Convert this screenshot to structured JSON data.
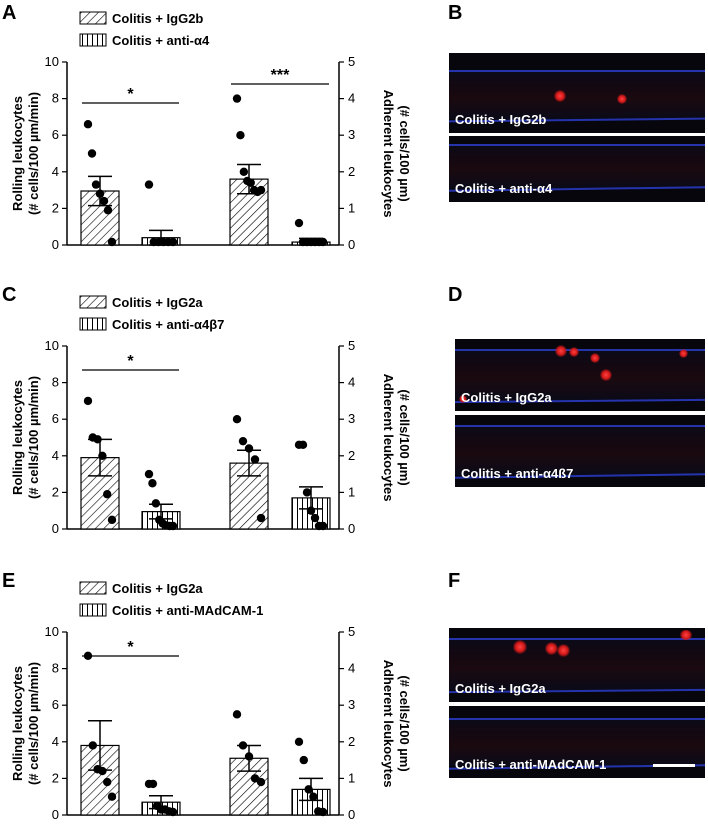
{
  "panels": {
    "A": "A",
    "B": "B",
    "C": "C",
    "D": "D",
    "E": "E",
    "F": "F"
  },
  "chart_data": [
    {
      "type": "bar",
      "panel": "A",
      "legend": [
        {
          "name": "Colitis + IgG2b",
          "pattern": "diagonal"
        },
        {
          "name": "Colitis + anti-α4",
          "pattern": "vertical"
        }
      ],
      "ylabel_left": [
        "Rolling leukocytes",
        "(# cells/100 µm/min)"
      ],
      "ylabel_right": [
        "Adherent leukocytes",
        "(# cells/100 µm)"
      ],
      "ylim_left": [
        0,
        10
      ],
      "yticks_left": [
        "0",
        "2",
        "4",
        "6",
        "8",
        "10"
      ],
      "ylim_right": [
        0,
        5
      ],
      "yticks_right": [
        "0",
        "1",
        "2",
        "3",
        "4",
        "5"
      ],
      "groups": [
        {
          "measure": "rolling",
          "bars": [
            {
              "series": "Colitis + IgG2b",
              "mean": 2.95,
              "sem": 0.8,
              "points": [
                6.6,
                5.0,
                3.3,
                2.8,
                2.4,
                1.9,
                0.05
              ]
            },
            {
              "series": "Colitis + anti-α4",
              "mean": 0.4,
              "sem": 0.4,
              "points": [
                3.3,
                0.05,
                0.05,
                0.05,
                0.05,
                0.05
              ]
            }
          ],
          "significance": "*"
        },
        {
          "measure": "adherent",
          "bars": [
            {
              "series": "Colitis + IgG2b",
              "mean": 1.8,
              "sem": 0.4,
              "points": [
                4.0,
                3.0,
                2.0,
                1.75,
                1.7,
                1.5,
                1.45,
                1.5
              ]
            },
            {
              "series": "Colitis + anti-α4",
              "mean": 0.08,
              "sem": 0.1,
              "points": [
                0.6,
                0.02,
                0.02,
                0.02,
                0.02,
                0.02,
                0.02
              ]
            }
          ],
          "significance": "***"
        }
      ]
    },
    {
      "type": "bar",
      "panel": "C",
      "legend": [
        {
          "name": "Colitis + IgG2a",
          "pattern": "diagonal"
        },
        {
          "name": "Colitis + anti-α4β7",
          "pattern": "vertical"
        }
      ],
      "ylabel_left": [
        "Rolling leukocytes",
        "(# cells/100 µm/min)"
      ],
      "ylabel_right": [
        "Adherent leukocytes",
        "(# cells/100 µm)"
      ],
      "ylim_left": [
        0,
        10
      ],
      "yticks_left": [
        "0",
        "2",
        "4",
        "6",
        "8",
        "10"
      ],
      "ylim_right": [
        0,
        5
      ],
      "yticks_right": [
        "0",
        "1",
        "2",
        "3",
        "4",
        "5"
      ],
      "groups": [
        {
          "measure": "rolling",
          "bars": [
            {
              "series": "Colitis + IgG2a",
              "mean": 3.9,
              "sem": 1.0,
              "points": [
                7.0,
                5.0,
                4.9,
                4.0,
                1.9,
                0.5
              ]
            },
            {
              "series": "Colitis + anti-α4β7",
              "mean": 0.95,
              "sem": 0.4,
              "points": [
                3.0,
                2.5,
                1.4,
                0.5,
                0.3,
                0.2,
                0.15,
                0.1
              ]
            }
          ],
          "significance": "*"
        },
        {
          "measure": "adherent",
          "bars": [
            {
              "series": "Colitis + IgG2a",
              "mean": 1.8,
              "sem": 0.35,
              "points": [
                3.0,
                2.4,
                2.2,
                1.9,
                0.3
              ]
            },
            {
              "series": "Colitis + anti-α4β7",
              "mean": 0.85,
              "sem": 0.3,
              "points": [
                2.3,
                2.3,
                1.0,
                0.5,
                0.3,
                0.0,
                0.0
              ]
            }
          ],
          "significance": ""
        }
      ]
    },
    {
      "type": "bar",
      "panel": "E",
      "legend": [
        {
          "name": "Colitis + IgG2a",
          "pattern": "diagonal"
        },
        {
          "name": "Colitis + anti-MAdCAM-1",
          "pattern": "vertical"
        }
      ],
      "ylabel_left": [
        "Rolling leukocytes",
        "(# cells/100 µm/min)"
      ],
      "ylabel_right": [
        "Adherent leukocytes",
        "(# cells/100 µm)"
      ],
      "ylim_left": [
        0,
        10
      ],
      "yticks_left": [
        "0",
        "2",
        "4",
        "6",
        "8",
        "10"
      ],
      "ylim_right": [
        0,
        5
      ],
      "yticks_right": [
        "0",
        "1",
        "2",
        "3",
        "4",
        "5"
      ],
      "groups": [
        {
          "measure": "rolling",
          "bars": [
            {
              "series": "Colitis + IgG2a",
              "mean": 3.8,
              "sem": 1.35,
              "points": [
                8.7,
                3.8,
                2.5,
                2.4,
                1.8,
                1.0
              ]
            },
            {
              "series": "Colitis + anti-MAdCAM-1",
              "mean": 0.7,
              "sem": 0.35,
              "points": [
                1.7,
                1.7,
                0.5,
                0.3,
                0.3,
                0.2,
                0.1
              ]
            }
          ],
          "significance": "*"
        },
        {
          "measure": "adherent",
          "bars": [
            {
              "series": "Colitis + IgG2a",
              "mean": 1.55,
              "sem": 0.35,
              "points": [
                2.75,
                1.9,
                1.6,
                1.0,
                0.9
              ]
            },
            {
              "series": "Colitis + anti-MAdCAM-1",
              "mean": 0.7,
              "sem": 0.3,
              "points": [
                2.0,
                1.5,
                0.7,
                0.5,
                0.1,
                0.0
              ]
            }
          ],
          "significance": ""
        }
      ]
    }
  ],
  "micrographs": [
    {
      "panel": "B",
      "top_label": "Colitis + IgG2b",
      "bottom_label": "Colitis + anti-α4"
    },
    {
      "panel": "D",
      "top_label": "Colitis + IgG2a",
      "bottom_label": "Colitis + anti-α4ß7"
    },
    {
      "panel": "F",
      "top_label": "Colitis + IgG2a",
      "bottom_label": "Colitis + anti-MAdCAM-1"
    }
  ],
  "colors": {
    "bar_fill": "#ffffff",
    "hatch": "#000000",
    "point": "#000000",
    "background_micro": "#06060c",
    "vessel_edge": "#2a3cc8",
    "cell": "#e02020"
  }
}
